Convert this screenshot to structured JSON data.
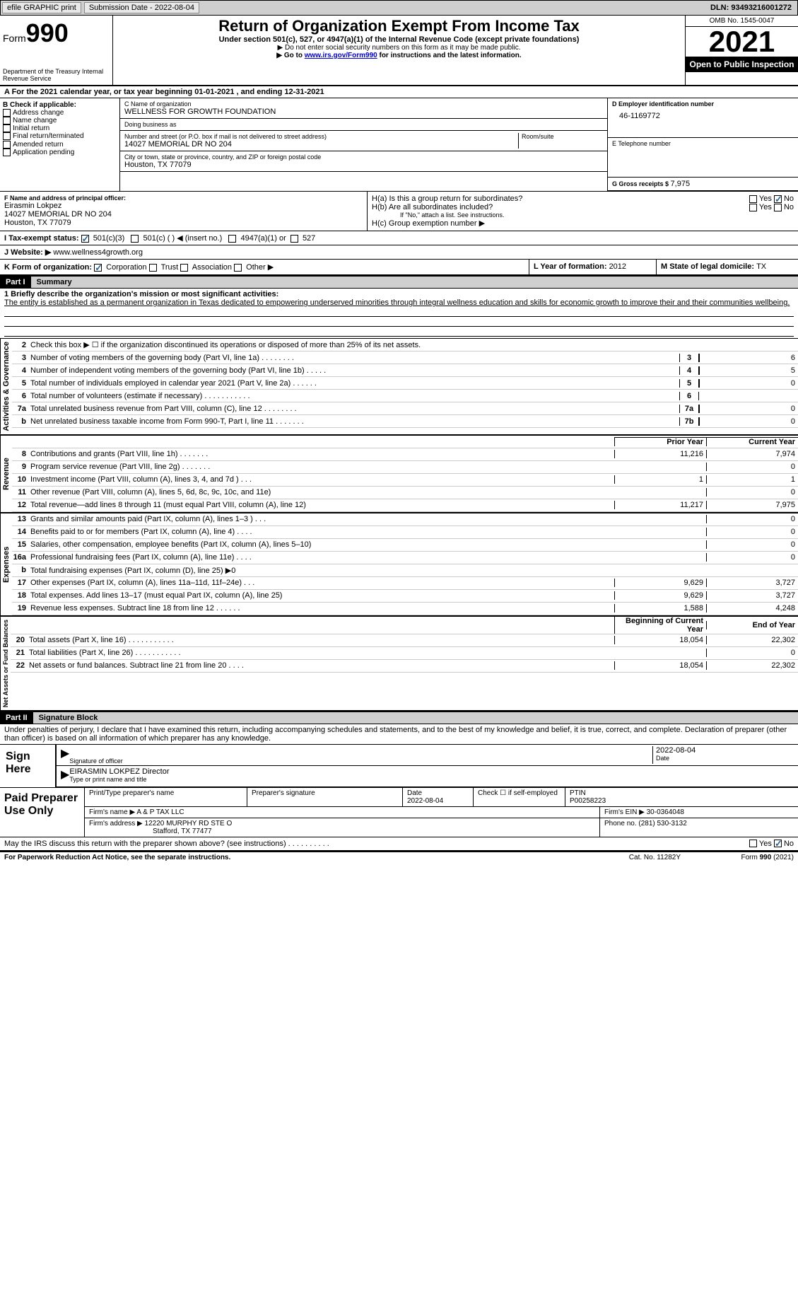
{
  "toolbar": {
    "efile_label": "efile GRAPHIC print",
    "submission_label": "Submission Date - 2022-08-04",
    "dln_label": "DLN: 93493216001272"
  },
  "header": {
    "form_prefix": "Form",
    "form_number": "990",
    "dept": "Department of the Treasury Internal Revenue Service",
    "title": "Return of Organization Exempt From Income Tax",
    "subtitle": "Under section 501(c), 527, or 4947(a)(1) of the Internal Revenue Code (except private foundations)",
    "note1": "▶ Do not enter social security numbers on this form as it may be made public.",
    "note2_pre": "▶ Go to ",
    "note2_link": "www.irs.gov/Form990",
    "note2_post": " for instructions and the latest information.",
    "omb": "OMB No. 1545-0047",
    "year": "2021",
    "open": "Open to Public Inspection"
  },
  "lineA": "A For the 2021 calendar year, or tax year beginning 01-01-2021   , and ending 12-31-2021",
  "colB": {
    "title": "B Check if applicable:",
    "opts": [
      "Address change",
      "Name change",
      "Initial return",
      "Final return/terminated",
      "Amended return",
      "Application pending"
    ]
  },
  "colC": {
    "name_label": "C Name of organization",
    "name": "WELLNESS FOR GROWTH FOUNDATION",
    "dba_label": "Doing business as",
    "dba": "",
    "addr_label": "Number and street (or P.O. box if mail is not delivered to street address)",
    "room_label": "Room/suite",
    "addr": "14027 MEMORIAL DR NO 204",
    "city_label": "City or town, state or province, country, and ZIP or foreign postal code",
    "city": "Houston, TX  77079"
  },
  "colD": {
    "ein_label": "D Employer identification number",
    "ein": "46-1169772",
    "phone_label": "E Telephone number",
    "phone": "",
    "gross_label": "G Gross receipts $ ",
    "gross": "7,975"
  },
  "F": {
    "label": "F  Name and address of principal officer:",
    "name": "Eirasmin Lokpez",
    "addr1": "14027 MEMORIAL DR NO 204",
    "addr2": "Houston, TX  77079"
  },
  "H": {
    "a_label": "H(a)  Is this a group return for subordinates?",
    "b_label": "H(b)  Are all subordinates included?",
    "b_note": "If \"No,\" attach a list. See instructions.",
    "c_label": "H(c)  Group exemption number ▶",
    "yes": "Yes",
    "no": "No"
  },
  "I": {
    "label": "I    Tax-exempt status:",
    "o1": "501(c)(3)",
    "o2": "501(c) (  ) ◀ (insert no.)",
    "o3": "4947(a)(1) or",
    "o4": "527"
  },
  "J": {
    "label": "J   Website: ▶ ",
    "value": "www.wellness4growth.org"
  },
  "K": {
    "label": "K Form of organization:",
    "opts": [
      "Corporation",
      "Trust",
      "Association",
      "Other ▶"
    ]
  },
  "L": {
    "label": "L Year of formation: ",
    "value": "2012"
  },
  "M": {
    "label": "M State of legal domicile: ",
    "value": "TX"
  },
  "part1": {
    "num": "Part I",
    "title": "Summary"
  },
  "mission": {
    "prompt": "1   Briefly describe the organization's mission or most significant activities:",
    "text": "The entity is established as a permanent organization in Texas dedicated to empowering underserved minorities through integral wellness education and skills for economic growth to improve their and their communities wellbeing."
  },
  "gov_lines": [
    {
      "n": "2",
      "d": "Check this box ▶ ☐ if the organization discontinued its operations or disposed of more than 25% of its net assets.",
      "box": "",
      "v": ""
    },
    {
      "n": "3",
      "d": "Number of voting members of the governing body (Part VI, line 1a)   .     .     .     .     .     .     .     .",
      "box": "3",
      "v": "6"
    },
    {
      "n": "4",
      "d": "Number of independent voting members of the governing body (Part VI, line 1b)   .     .     .     .     .",
      "box": "4",
      "v": "5"
    },
    {
      "n": "5",
      "d": "Total number of individuals employed in calendar year 2021 (Part V, line 2a)   .     .     .     .     .     .",
      "box": "5",
      "v": "0"
    },
    {
      "n": "6",
      "d": "Total number of volunteers (estimate if necessary)    .     .     .     .     .     .     .     .     .     .     .",
      "box": "6",
      "v": ""
    },
    {
      "n": "7a",
      "d": "Total unrelated business revenue from Part VIII, column (C), line 12   .     .     .     .     .     .     .     .",
      "box": "7a",
      "v": "0"
    },
    {
      "n": "b",
      "d": "Net unrelated business taxable income from Form 990-T, Part I, line 11   .     .     .     .     .     .     .",
      "box": "7b",
      "v": "0"
    }
  ],
  "rev_hdr": {
    "prior": "Prior Year",
    "current": "Current Year"
  },
  "rev_lines": [
    {
      "n": "8",
      "d": "Contributions and grants (Part VIII, line 1h)   .     .     .     .     .     .     .",
      "p": "11,216",
      "c": "7,974"
    },
    {
      "n": "9",
      "d": "Program service revenue (Part VIII, line 2g)   .     .     .     .     .     .     .",
      "p": "",
      "c": "0"
    },
    {
      "n": "10",
      "d": "Investment income (Part VIII, column (A), lines 3, 4, and 7d )    .     .     .",
      "p": "1",
      "c": "1"
    },
    {
      "n": "11",
      "d": "Other revenue (Part VIII, column (A), lines 5, 6d, 8c, 9c, 10c, and 11e)",
      "p": "",
      "c": "0"
    },
    {
      "n": "12",
      "d": "Total revenue—add lines 8 through 11 (must equal Part VIII, column (A), line 12)",
      "p": "11,217",
      "c": "7,975"
    }
  ],
  "exp_lines": [
    {
      "n": "13",
      "d": "Grants and similar amounts paid (Part IX, column (A), lines 1–3 )   .     .     .",
      "p": "",
      "c": "0"
    },
    {
      "n": "14",
      "d": "Benefits paid to or for members (Part IX, column (A), line 4)   .     .     .     .",
      "p": "",
      "c": "0"
    },
    {
      "n": "15",
      "d": "Salaries, other compensation, employee benefits (Part IX, column (A), lines 5–10)",
      "p": "",
      "c": "0"
    },
    {
      "n": "16a",
      "d": "Professional fundraising fees (Part IX, column (A), line 11e)    .     .     .     .",
      "p": "",
      "c": "0"
    },
    {
      "n": "b",
      "d": "Total fundraising expenses (Part IX, column (D), line 25) ▶0",
      "p": "",
      "c": "",
      "shade": true
    },
    {
      "n": "17",
      "d": "Other expenses (Part IX, column (A), lines 11a–11d, 11f–24e)    .     .     .",
      "p": "9,629",
      "c": "3,727"
    },
    {
      "n": "18",
      "d": "Total expenses. Add lines 13–17 (must equal Part IX, column (A), line 25)",
      "p": "9,629",
      "c": "3,727"
    },
    {
      "n": "19",
      "d": "Revenue less expenses. Subtract line 18 from line 12   .     .     .     .     .     .",
      "p": "1,588",
      "c": "4,248"
    }
  ],
  "na_hdr": {
    "begin": "Beginning of Current Year",
    "end": "End of Year"
  },
  "na_lines": [
    {
      "n": "20",
      "d": "Total assets (Part X, line 16)   .     .     .     .     .     .     .     .     .     .     .",
      "p": "18,054",
      "c": "22,302"
    },
    {
      "n": "21",
      "d": "Total liabilities (Part X, line 26)   .     .     .     .     .     .     .     .     .     .     .",
      "p": "",
      "c": "0"
    },
    {
      "n": "22",
      "d": "Net assets or fund balances. Subtract line 21 from line 20   .     .     .     .",
      "p": "18,054",
      "c": "22,302"
    }
  ],
  "part2": {
    "num": "Part II",
    "title": "Signature Block"
  },
  "penalties": "Under penalties of perjury, I declare that I have examined this return, including accompanying schedules and statements, and to the best of my knowledge and belief, it is true, correct, and complete. Declaration of preparer (other than officer) is based on all information of which preparer has any knowledge.",
  "sign": {
    "here": "Sign Here",
    "sig_label": "Signature of officer",
    "date": "2022-08-04",
    "date_label": "Date",
    "name": "EIRASMIN LOKPEZ  Director",
    "name_label": "Type or print name and title"
  },
  "prep": {
    "title": "Paid Preparer Use Only",
    "name_label": "Print/Type preparer's name",
    "sig_label": "Preparer's signature",
    "date_label": "Date",
    "date": "2022-08-04",
    "self_label": "Check ☐ if self-employed",
    "ptin_label": "PTIN",
    "ptin": "P00258223",
    "firm_name_label": "Firm's name    ▶ ",
    "firm_name": "A & P TAX LLC",
    "firm_ein_label": "Firm's EIN ▶ ",
    "firm_ein": "30-0364048",
    "firm_addr_label": "Firm's address ▶ ",
    "firm_addr1": "12220 MURPHY RD STE O",
    "firm_addr2": "Stafford, TX  77477",
    "phone_label": "Phone no. ",
    "phone": "(281) 530-3132"
  },
  "discuss": {
    "q": "May the IRS discuss this return with the preparer shown above? (see instructions)    .     .     .     .     .     .     .     .     .     .",
    "yes": "Yes",
    "no": "No"
  },
  "footer": {
    "left": "For Paperwork Reduction Act Notice, see the separate instructions.",
    "mid": "Cat. No. 11282Y",
    "right": "Form 990 (2021)"
  },
  "vlabels": {
    "gov": "Activities & Governance",
    "rev": "Revenue",
    "exp": "Expenses",
    "na": "Net Assets or Fund Balances"
  },
  "colors": {
    "toolbar_bg": "#cfcfcf",
    "link": "#0000cc",
    "check": "#2a6496"
  }
}
